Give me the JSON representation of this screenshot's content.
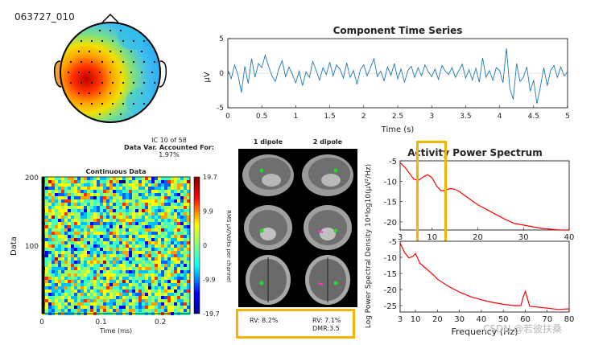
{
  "component_id": "063727_010",
  "ic_info": {
    "line1": "IC 10 of 58",
    "line2": "Data Var. Accounted For:",
    "line3": "1.97%"
  },
  "dipole_labels": {
    "one": "1 dipole",
    "two": "2 dipole",
    "rv1": "RV: 8.2%",
    "rv2": "RV: 7.1%",
    "dmr": "DMR:3.5"
  },
  "watermark": "CSDN @若彼扶桑",
  "colors": {
    "accent_box": "#f4b400",
    "ts_line": "#1f77b4",
    "spectrum": "#ff0000"
  },
  "chart_data": [
    {
      "type": "line",
      "title": "Component Time Series",
      "xlabel": "Time (s)",
      "ylabel": "μV",
      "xlim": [
        0,
        5
      ],
      "ylim": [
        -5,
        5
      ],
      "xticks": [
        "0",
        "0.5",
        "1",
        "1.5",
        "2",
        "2.5",
        "3",
        "3.5",
        "4",
        "4.5",
        "5"
      ],
      "yticks": [
        "5",
        "0",
        "-5"
      ],
      "series": [
        {
          "x": [
            0,
            0.05,
            0.1,
            0.15,
            0.2,
            0.25,
            0.3,
            0.35,
            0.4,
            0.45,
            0.5,
            0.55,
            0.6,
            0.65,
            0.7,
            0.75,
            0.8,
            0.85,
            0.9,
            0.95,
            1.0,
            1.05,
            1.1,
            1.15,
            1.2,
            1.25,
            1.3,
            1.35,
            1.4,
            1.45,
            1.5,
            1.55,
            1.6,
            1.65,
            1.7,
            1.75,
            1.8,
            1.85,
            1.9,
            1.95,
            2.0,
            2.05,
            2.1,
            2.15,
            2.2,
            2.25,
            2.3,
            2.35,
            2.4,
            2.45,
            2.5,
            2.55,
            2.6,
            2.65,
            2.7,
            2.75,
            2.8,
            2.85,
            2.9,
            2.95,
            3.0,
            3.05,
            3.1,
            3.15,
            3.2,
            3.25,
            3.3,
            3.35,
            3.4,
            3.45,
            3.5,
            3.55,
            3.6,
            3.65,
            3.7,
            3.75,
            3.8,
            3.85,
            3.9,
            3.95,
            4.0,
            4.05,
            4.1,
            4.15,
            4.2,
            4.25,
            4.3,
            4.35,
            4.4,
            4.45,
            4.5,
            4.55,
            4.6,
            4.65,
            4.7,
            4.75,
            4.8,
            4.85,
            4.9,
            4.95,
            5.0
          ],
          "y": [
            0.5,
            -0.8,
            1.2,
            -0.3,
            -2.8,
            1.0,
            -1.5,
            2.1,
            -0.6,
            1.4,
            0.8,
            2.6,
            1.0,
            -0.4,
            -1.2,
            0.6,
            1.8,
            -0.5,
            0.9,
            -0.2,
            -1.4,
            0.3,
            -1.8,
            0.2,
            -0.6,
            1.7,
            0.4,
            -1.0,
            0.8,
            -0.2,
            1.6,
            -0.4,
            1.2,
            0.6,
            -0.7,
            1.5,
            -0.6,
            0.4,
            -1.6,
            0.5,
            1.2,
            -0.4,
            0.8,
            2.1,
            -0.5,
            0.3,
            -1.1,
            0.9,
            -0.3,
            1.4,
            -0.8,
            0.6,
            -1.3,
            0.4,
            1.0,
            -0.6,
            0.8,
            -0.4,
            1.2,
            0.2,
            -0.5,
            0.6,
            -0.9,
            1.1,
            0.3,
            -0.2,
            0.8,
            -0.6,
            0.4,
            1.3,
            -0.7,
            0.5,
            -1.0,
            0.7,
            -1.3,
            2.2,
            -0.6,
            0.4,
            -1.0,
            0.8,
            0.4,
            -1.4,
            3.6,
            -2.2,
            -3.8,
            1.4,
            -1.2,
            -0.6,
            0.9,
            -2.6,
            -1.0,
            -4.4,
            -2.0,
            0.8,
            -1.8,
            0.4,
            1.1,
            -0.6,
            0.9,
            -0.4,
            0.2
          ]
        }
      ]
    },
    {
      "type": "heatmap",
      "title": "Continuous Data",
      "xlabel": "Time (ms)",
      "ylabel": "Data",
      "xlim": [
        0,
        0.25
      ],
      "ylim": [
        0,
        200
      ],
      "xticks": [
        "0",
        "0.1",
        "0.2"
      ],
      "yticks": [
        "200",
        "100"
      ],
      "colorbar": {
        "label": "RMS μV/Volts per channel",
        "ticks": [
          "19.7",
          "9.9",
          "0",
          "-9.9",
          "-19.7"
        ],
        "range": [
          -19.7,
          19.7
        ]
      }
    },
    {
      "type": "line",
      "title": "Activity Power Spectrum",
      "xlabel": "",
      "ylabel": "",
      "xlim": [
        3,
        40
      ],
      "ylim": [
        -22,
        -5
      ],
      "xticks": [
        "3",
        "10",
        "20",
        "30",
        "40"
      ],
      "yticks": [
        "-5",
        "-10",
        "-15",
        "-20"
      ],
      "series": [
        {
          "x": [
            3,
            4,
            5,
            6,
            7,
            8,
            9,
            10,
            11,
            12,
            13,
            14,
            15,
            16,
            17,
            18,
            19,
            20,
            22,
            24,
            26,
            28,
            30,
            32,
            34,
            36,
            38,
            40
          ],
          "y": [
            -5.5,
            -6.5,
            -8.0,
            -9.5,
            -9.8,
            -9.0,
            -8.4,
            -9.2,
            -11.2,
            -12.4,
            -12.2,
            -11.8,
            -12.0,
            -12.6,
            -13.4,
            -14.2,
            -15.0,
            -15.8,
            -17.0,
            -18.2,
            -19.4,
            -20.4,
            -20.8,
            -21.2,
            -21.6,
            -21.8,
            -22.0,
            -22.0
          ]
        }
      ]
    },
    {
      "type": "line",
      "title": "",
      "xlabel": "Frequency (Hz)",
      "ylabel": "Log Power Spectral Density 10*log10(μV²/Hz)",
      "xlim": [
        3,
        80
      ],
      "ylim": [
        -27,
        -5
      ],
      "xticks": [
        "3",
        "10",
        "20",
        "30",
        "40",
        "50",
        "60",
        "70",
        "80"
      ],
      "yticks": [
        "-5",
        "-10",
        "-15",
        "-20",
        "-25"
      ],
      "series": [
        {
          "x": [
            3,
            5,
            7,
            9,
            10,
            12,
            14,
            16,
            18,
            20,
            25,
            30,
            35,
            40,
            45,
            50,
            55,
            58,
            59,
            60,
            61,
            62,
            65,
            70,
            75,
            80
          ],
          "y": [
            -5.5,
            -8.5,
            -10.2,
            -9.6,
            -8.8,
            -11.8,
            -13.0,
            -14.2,
            -15.4,
            -16.8,
            -19.0,
            -20.8,
            -22.2,
            -23.2,
            -24.0,
            -24.6,
            -25.0,
            -25.0,
            -22.5,
            -20.6,
            -22.8,
            -25.2,
            -25.4,
            -25.8,
            -26.2,
            -26.0
          ]
        }
      ]
    }
  ]
}
